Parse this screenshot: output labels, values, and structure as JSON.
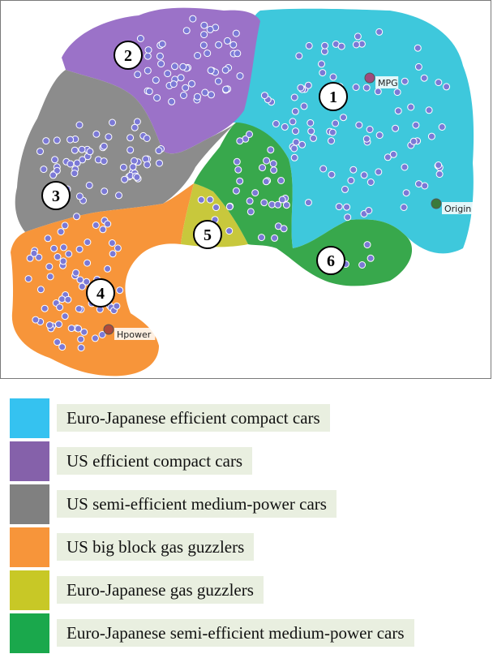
{
  "map": {
    "regions": [
      {
        "id": "1",
        "color": "#3ec8dc"
      },
      {
        "id": "2",
        "color": "#9b72c8"
      },
      {
        "id": "3",
        "color": "#8c8c8c"
      },
      {
        "id": "4",
        "color": "#f7953a"
      },
      {
        "id": "5",
        "color": "#c8c83c"
      },
      {
        "id": "6",
        "color": "#38a84c"
      }
    ],
    "point_color": "#7b79d6",
    "markers": [
      {
        "label": "MPG",
        "color": "#a04a7c"
      },
      {
        "label": "Origin",
        "color": "#3a7a3a"
      },
      {
        "label": "Hpower",
        "color": "#b04a3a"
      }
    ]
  },
  "legend": [
    {
      "label": "Euro-Japanese efficient compact cars",
      "color": "#35c2f0"
    },
    {
      "label": "US efficient compact cars",
      "color": "#8561aa"
    },
    {
      "label": "US semi-efficient medium-power cars",
      "color": "#808080"
    },
    {
      "label": "US big block gas guzzlers",
      "color": "#f7953a"
    },
    {
      "label": "Euro-Japanese gas guzzlers",
      "color": "#c8c826"
    },
    {
      "label": "Euro-Japanese semi-efficient medium-power cars",
      "color": "#1aa84c"
    }
  ]
}
